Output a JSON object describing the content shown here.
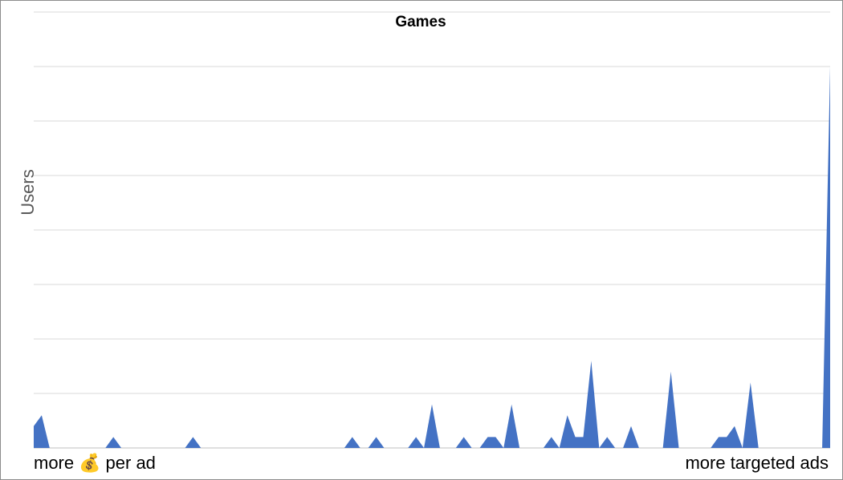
{
  "chart_data": {
    "type": "area",
    "title": "Games",
    "ylabel": "Users",
    "xlabel": "",
    "x_left_label": "more",
    "x_left_icon": "money-bag-icon",
    "x_left_suffix": "per ad",
    "x_right_label": "more targeted ads",
    "ylim": [
      0,
      8
    ],
    "grid": true,
    "color": "#4472C4",
    "values": [
      0.4,
      0.6,
      0,
      0,
      0,
      0,
      0,
      0,
      0,
      0,
      0.2,
      0,
      0,
      0,
      0,
      0,
      0,
      0,
      0,
      0,
      0.2,
      0,
      0,
      0,
      0,
      0,
      0,
      0,
      0,
      0,
      0,
      0,
      0,
      0,
      0,
      0,
      0,
      0,
      0,
      0,
      0.2,
      0,
      0,
      0.2,
      0,
      0,
      0,
      0,
      0.2,
      0,
      0.8,
      0,
      0,
      0,
      0.2,
      0,
      0,
      0.2,
      0.2,
      0,
      0.8,
      0,
      0,
      0,
      0,
      0.2,
      0,
      0.6,
      0.2,
      0.2,
      1.6,
      0,
      0.2,
      0,
      0,
      0.4,
      0,
      0,
      0,
      0,
      1.4,
      0,
      0,
      0,
      0,
      0,
      0.2,
      0.2,
      0.4,
      0,
      1.2,
      0,
      0,
      0,
      0,
      0,
      0,
      0,
      0,
      0,
      7.0
    ]
  }
}
